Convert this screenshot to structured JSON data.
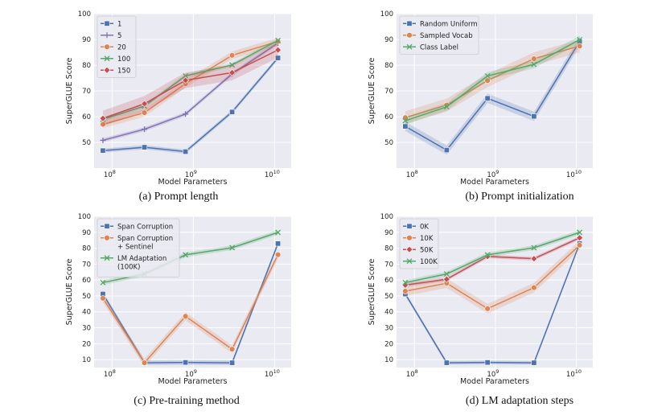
{
  "chart_data": [
    {
      "type": "line",
      "caption": "(a) Prompt length",
      "xlabel": "Model Parameters",
      "ylabel": "SuperGLUE Score",
      "xscale": "log",
      "xlim": [
        60000000.0,
        16000000000.0
      ],
      "ylim": [
        40,
        100
      ],
      "yticks": [
        50,
        60,
        70,
        80,
        90,
        100
      ],
      "xticks": [
        {
          "value": 100000000.0,
          "label": "10^8"
        },
        {
          "value": 1000000000.0,
          "label": "10^9"
        },
        {
          "value": 10000000000.0,
          "label": "10^10"
        }
      ],
      "x": [
        77000000.0,
        250000000.0,
        800000000.0,
        3000000000.0,
        11000000000.0
      ],
      "legend_position": "top-left",
      "grid": true,
      "series": [
        {
          "name": "1",
          "color": "#4c72b0",
          "marker": "square",
          "values": [
            46.8,
            48.1,
            46.4,
            61.8,
            82.8
          ],
          "band": 0.8
        },
        {
          "name": "5",
          "color": "#8172b3",
          "marker": "plus",
          "values": [
            50.8,
            55.1,
            61.0,
            76.6,
            88.6
          ],
          "band": 0.8
        },
        {
          "name": "20",
          "color": "#dd8452",
          "marker": "circle",
          "values": [
            57.0,
            61.5,
            72.8,
            83.8,
            89.2
          ],
          "band": 1.5
        },
        {
          "name": "100",
          "color": "#55a868",
          "marker": "x",
          "values": [
            58.9,
            64.1,
            75.8,
            80.1,
            89.6
          ],
          "band": 0.8
        },
        {
          "name": "150",
          "color": "#c44e52",
          "marker": "diamond",
          "values": [
            59.3,
            65.0,
            74.1,
            77.1,
            85.9
          ],
          "band": 3.0
        }
      ]
    },
    {
      "type": "line",
      "caption": "(b) Prompt initialization",
      "xlabel": "Model Parameters",
      "ylabel": "SuperGLUE Score",
      "xscale": "log",
      "xlim": [
        60000000.0,
        16000000000.0
      ],
      "ylim": [
        40,
        100
      ],
      "yticks": [
        50,
        60,
        70,
        80,
        90,
        100
      ],
      "xticks": [
        {
          "value": 100000000.0,
          "label": "10^8"
        },
        {
          "value": 1000000000.0,
          "label": "10^9"
        },
        {
          "value": 10000000000.0,
          "label": "10^10"
        }
      ],
      "x": [
        77000000.0,
        250000000.0,
        800000000.0,
        3000000000.0,
        11000000000.0
      ],
      "legend_position": "top-left",
      "grid": true,
      "series": [
        {
          "name": "Random Uniform",
          "color": "#4c72b0",
          "marker": "square",
          "values": [
            56.2,
            47.0,
            67.1,
            60.1,
            89.2
          ],
          "band": 1.8
        },
        {
          "name": "Sampled Vocab",
          "color": "#dd8452",
          "marker": "circle",
          "values": [
            59.6,
            64.5,
            74.0,
            82.5,
            87.4
          ],
          "band": 2.5
        },
        {
          "name": "Class Label",
          "color": "#55a868",
          "marker": "x",
          "values": [
            58.4,
            63.8,
            75.8,
            80.3,
            89.9
          ],
          "band": 1.5
        }
      ]
    },
    {
      "type": "line",
      "caption": "(c) Pre-training method",
      "xlabel": "Model Parameters",
      "ylabel": "SuperGLUE Score",
      "xscale": "log",
      "xlim": [
        60000000.0,
        16000000000.0
      ],
      "ylim": [
        5,
        100
      ],
      "yticks": [
        10,
        20,
        30,
        40,
        50,
        60,
        70,
        80,
        90,
        100
      ],
      "xticks": [
        {
          "value": 100000000.0,
          "label": "10^8"
        },
        {
          "value": 1000000000.0,
          "label": "10^9"
        },
        {
          "value": 10000000000.0,
          "label": "10^10"
        }
      ],
      "x": [
        77000000.0,
        250000000.0,
        800000000.0,
        3000000000.0,
        11000000000.0
      ],
      "legend_position": "top-left",
      "grid": true,
      "series": [
        {
          "name": [
            "Span Corruption"
          ],
          "color": "#4c72b0",
          "marker": "square",
          "values": [
            51.2,
            8.0,
            8.2,
            8.0,
            82.9
          ],
          "band": 1.5
        },
        {
          "name": [
            "Span Corruption",
            "+ Sentinel"
          ],
          "color": "#dd8452",
          "marker": "circle",
          "values": [
            48.5,
            8.0,
            37.2,
            16.5,
            75.9
          ],
          "band": 2.5
        },
        {
          "name": [
            "LM Adaptation",
            "(100K)"
          ],
          "color": "#55a868",
          "marker": "x",
          "values": [
            58.4,
            63.8,
            75.8,
            80.3,
            89.9
          ],
          "band": 1.5
        }
      ]
    },
    {
      "type": "line",
      "caption": "(d) LM adaptation steps",
      "xlabel": "Model Parameters",
      "ylabel": "SuperGLUE Score",
      "xscale": "log",
      "xlim": [
        60000000.0,
        16000000000.0
      ],
      "ylim": [
        5,
        100
      ],
      "yticks": [
        10,
        20,
        30,
        40,
        50,
        60,
        70,
        80,
        90,
        100
      ],
      "xticks": [
        {
          "value": 100000000.0,
          "label": "10^8"
        },
        {
          "value": 1000000000.0,
          "label": "10^9"
        },
        {
          "value": 10000000000.0,
          "label": "10^10"
        }
      ],
      "x": [
        77000000.0,
        250000000.0,
        800000000.0,
        3000000000.0,
        11000000000.0
      ],
      "legend_position": "top-left",
      "grid": true,
      "series": [
        {
          "name": "0K",
          "color": "#4c72b0",
          "marker": "square",
          "values": [
            51.2,
            8.0,
            8.2,
            8.0,
            82.9
          ],
          "band": 1.2
        },
        {
          "name": "10K",
          "color": "#dd8452",
          "marker": "circle",
          "values": [
            53.0,
            58.0,
            42.0,
            55.2,
            81.9
          ],
          "band": 3.0
        },
        {
          "name": "50K",
          "color": "#c44e52",
          "marker": "diamond",
          "values": [
            56.8,
            60.5,
            74.8,
            73.4,
            86.5
          ],
          "band": 1.2
        },
        {
          "name": "100K",
          "color": "#55a868",
          "marker": "x",
          "values": [
            58.4,
            63.8,
            75.8,
            80.3,
            89.9
          ],
          "band": 1.5
        }
      ]
    }
  ]
}
